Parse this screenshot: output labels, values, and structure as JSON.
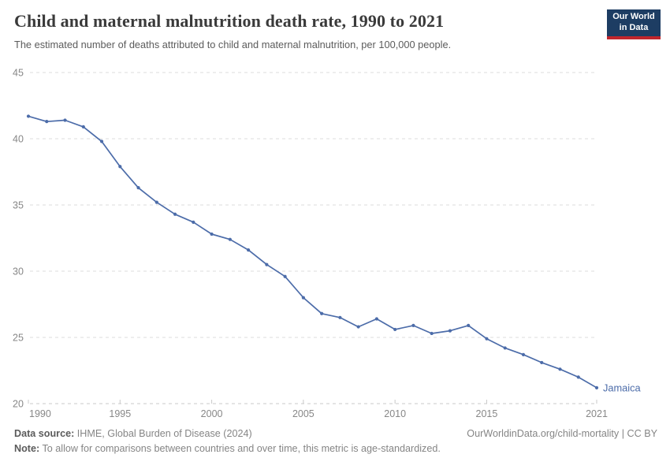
{
  "header": {
    "title": "Child and maternal malnutrition death rate, 1990 to 2021",
    "subtitle": "The estimated number of deaths attributed to child and maternal malnutrition, per 100,000 people.",
    "logo": {
      "line1": "Our World",
      "line2": "in Data"
    }
  },
  "chart_data": {
    "type": "line",
    "title": "Child and maternal malnutrition death rate, 1990 to 2021",
    "xlabel": "",
    "ylabel": "",
    "x": [
      1990,
      1991,
      1992,
      1993,
      1994,
      1995,
      1996,
      1997,
      1998,
      1999,
      2000,
      2001,
      2002,
      2003,
      2004,
      2005,
      2006,
      2007,
      2008,
      2009,
      2010,
      2011,
      2012,
      2013,
      2014,
      2015,
      2016,
      2017,
      2018,
      2019,
      2020,
      2021
    ],
    "series": [
      {
        "name": "Jamaica",
        "values": [
          41.7,
          41.3,
          41.4,
          40.9,
          39.8,
          37.9,
          36.3,
          35.2,
          34.3,
          33.7,
          32.8,
          32.4,
          31.6,
          30.5,
          29.6,
          28.0,
          26.8,
          26.5,
          25.8,
          26.4,
          25.6,
          25.9,
          25.3,
          25.5,
          25.9,
          24.9,
          24.2,
          23.7,
          23.1,
          22.6,
          22.0,
          21.2
        ]
      }
    ],
    "ylim": [
      20,
      45
    ],
    "yticks": [
      20,
      25,
      30,
      35,
      40,
      45
    ],
    "xticks": [
      1990,
      1995,
      2000,
      2005,
      2010,
      2015,
      2021
    ],
    "grid": "horizontal-dashed",
    "legend_position": "end-of-line-label",
    "end_label": "Jamaica"
  },
  "footer": {
    "data_source_label": "Data source:",
    "data_source_value": "IHME, Global Burden of Disease (2024)",
    "link": "OurWorldinData.org/child-mortality | CC BY",
    "note_label": "Note:",
    "note_value": "To allow for comparisons between countries and over time, this metric is age-standardized."
  },
  "colors": {
    "line": "#4c6ca9",
    "entity_label": "#4c6ca9",
    "grid": "#dcdcdc",
    "axis_line": "#c9c9c9",
    "axis_text": "#878787",
    "logo_bg": "#1d3d63",
    "logo_red": "#c0262d",
    "title_text": "#3a3a3a",
    "subtitle_text": "#5b5b5b"
  }
}
